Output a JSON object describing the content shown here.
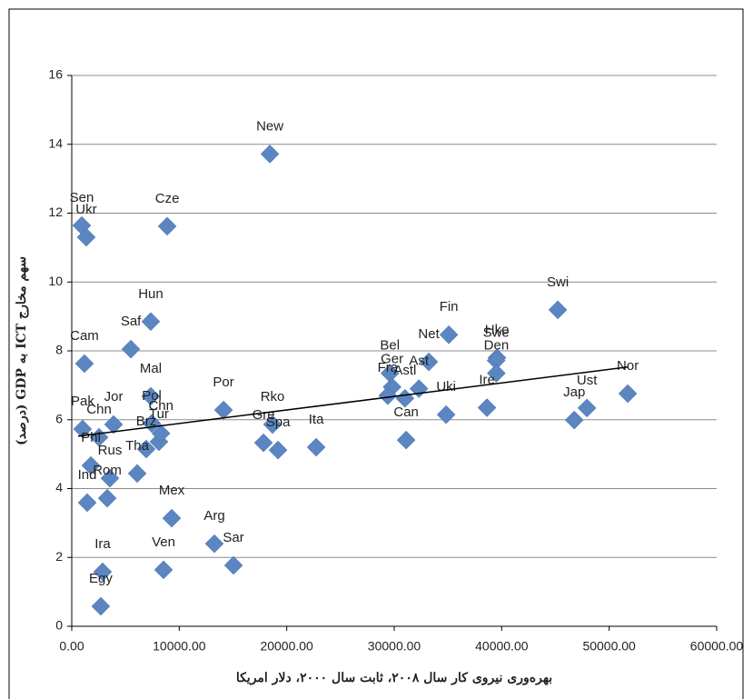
{
  "chart_data": {
    "type": "scatter",
    "x_label": "بهره‌وری نیروی کار سال ۲۰۰۸، ثابت سال ۲۰۰۰، دلار امریکا",
    "y_label": "سهم مخارج ICT به GDP (درصد)",
    "xlim": [
      0,
      60000
    ],
    "ylim": [
      0,
      16
    ],
    "xticks": [
      {
        "value": 0,
        "label": "0.00"
      },
      {
        "value": 10000,
        "label": "10000.00"
      },
      {
        "value": 20000,
        "label": "20000.00"
      },
      {
        "value": 30000,
        "label": "30000.00"
      },
      {
        "value": 40000,
        "label": "40000.00"
      },
      {
        "value": 50000,
        "label": "50000.00"
      },
      {
        "value": 60000,
        "label": "60000.00"
      }
    ],
    "yticks": [
      0,
      2,
      4,
      6,
      8,
      10,
      12,
      14,
      16
    ],
    "grid": true,
    "color": "#5b86c2",
    "point_labels": [
      "New",
      "Sen",
      "Ukr",
      "Cze",
      "Swi",
      "Hun",
      "Saf",
      "Cam",
      "Fin",
      "Net",
      "Hko",
      "Swe",
      "Den",
      "Bel",
      "Ger",
      "Fra",
      "Ast",
      "Astl",
      "Ire",
      "Uki",
      "Can",
      "Nor",
      "Ust",
      "Jap",
      "Ita",
      "Rko",
      "Gre",
      "Spa",
      "Por",
      "Mal",
      "Pol",
      "Tur",
      "Chn",
      "Brz",
      "Pak",
      "Jor",
      "Chn",
      "Phi",
      "Tha",
      "Rus",
      "Rom",
      "Ind",
      "Mex",
      "Arg",
      "Sar",
      "Ven",
      "Ira",
      "Egy"
    ],
    "x": [
      18430,
      930,
      1350,
      8880,
      45220,
      7350,
      5500,
      1180,
      35080,
      33220,
      39560,
      39480,
      39500,
      29600,
      29800,
      29400,
      32300,
      31000,
      38630,
      34830,
      31110,
      51730,
      47930,
      46750,
      22740,
      18680,
      17840,
      19190,
      14120,
      7350,
      7440,
      8110,
      8300,
      6930,
      1010,
      3890,
      2540,
      1780,
      6090,
      3550,
      3300,
      1440,
      9300,
      13270,
      15050,
      8540,
      2870,
      2700
    ],
    "values": [
      13.72,
      11.64,
      11.3,
      11.62,
      9.19,
      8.85,
      8.05,
      7.63,
      8.47,
      7.68,
      7.8,
      7.72,
      7.35,
      7.35,
      6.95,
      6.7,
      6.9,
      6.62,
      6.35,
      6.15,
      5.41,
      6.76,
      6.34,
      5.99,
      5.2,
      5.86,
      5.33,
      5.12,
      6.28,
      6.68,
      5.89,
      5.36,
      5.6,
      5.15,
      5.73,
      5.86,
      5.49,
      4.67,
      4.44,
      4.3,
      3.72,
      3.59,
      3.14,
      2.4,
      1.77,
      1.64,
      1.58,
      0.58
    ],
    "trend_line": {
      "x": [
        590,
        51730
      ],
      "values": [
        5.52,
        7.53
      ]
    }
  }
}
